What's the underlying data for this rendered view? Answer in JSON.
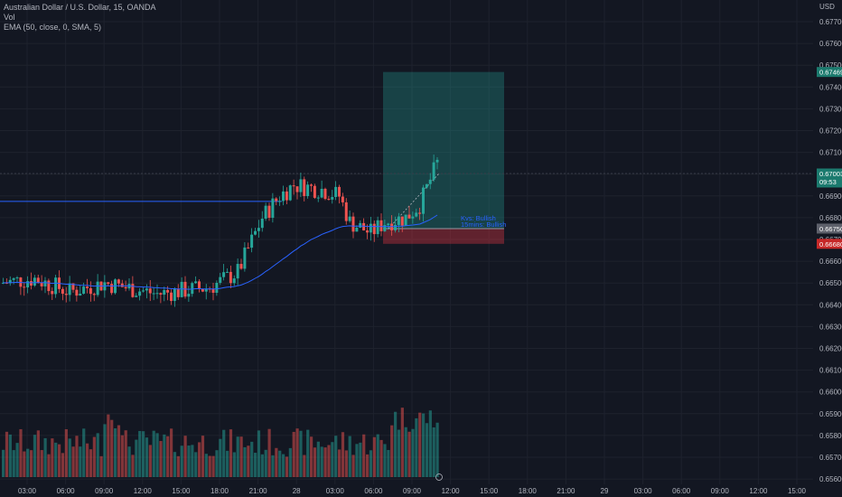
{
  "legend": {
    "title": "Australian Dollar / U.S. Dollar, 15, OANDA",
    "volume": "Vol",
    "indicator": "EMA (50, close, 0, SMA, 5)"
  },
  "currency": "USD",
  "price_axis": {
    "ticks": [
      "0.67700",
      "0.67600",
      "0.67500",
      "0.67400",
      "0.67300",
      "0.67200",
      "0.67100",
      "0.67000",
      "0.66900",
      "0.66800",
      "0.66700",
      "0.66600",
      "0.66500",
      "0.66400",
      "0.66300",
      "0.66200",
      "0.66100",
      "0.66000",
      "0.65900",
      "0.65800",
      "0.65700",
      "0.65600"
    ],
    "tags": {
      "target": "0.67469",
      "current": "0.67003",
      "countdown": "09:53",
      "entry": "0.66750",
      "stop": "0.66680"
    }
  },
  "time_axis": {
    "labels": [
      "03:00",
      "06:00",
      "09:00",
      "12:00",
      "15:00",
      "18:00",
      "21:00",
      "28",
      "03:00",
      "06:00",
      "09:00",
      "12:00",
      "15:00",
      "18:00",
      "21:00",
      "29",
      "03:00",
      "06:00",
      "09:00",
      "12:00",
      "15:00"
    ]
  },
  "annotations": {
    "label1": "Kvs: Bullish",
    "label2": "15mins: Bullish"
  },
  "colors": {
    "background": "#131722",
    "bull": "#26a69a",
    "bear": "#ef5350",
    "ema": "#2962ff",
    "level_line": "#2962ff",
    "profit_zone": "#26a69a",
    "loss_zone": "#f23645"
  },
  "chart_data": {
    "type": "candlestick",
    "series": [
      {
        "name": "EMA (50, close, 0, SMA, 5)"
      },
      {
        "name": "Vol"
      }
    ],
    "ylim": [
      0.6555,
      0.678
    ],
    "candles_shape": "intraday AUD/USD 15-minute bars: range 0.6650 to 0.6700, rally toward 0.6700 at end",
    "position": {
      "entry": 0.6675,
      "stop": 0.6668,
      "target": 0.67469
    }
  }
}
